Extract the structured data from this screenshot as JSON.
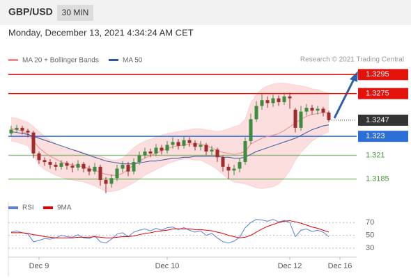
{
  "header": {
    "symbol": "GBP/USD",
    "timeframe": "30 MIN",
    "timestamp": "Monday, December 13, 2021 4:34:24 AM CET",
    "credit": "Research © 2021 Trading Central"
  },
  "chart_data": [
    {
      "type": "candlestick",
      "categories": [
        null,
        null,
        null,
        null,
        null,
        "Dec 9",
        null,
        null,
        null,
        null,
        null,
        null,
        null,
        null,
        null,
        null,
        null,
        null,
        null,
        null,
        null,
        null,
        null,
        null,
        null,
        null,
        null,
        null,
        "Dec 10",
        null,
        null,
        null,
        null,
        null,
        null,
        null,
        null,
        null,
        null,
        null,
        null,
        null,
        null,
        null,
        null,
        null,
        null,
        null,
        null,
        null,
        "Dec 12",
        null,
        null,
        null,
        null,
        null,
        null,
        null,
        null,
        "Dec 16"
      ],
      "open": [
        1.3233,
        1.3237,
        1.3239,
        1.3236,
        1.3234,
        1.3212,
        1.3205,
        1.3203,
        1.32,
        1.3198,
        1.3202,
        1.3199,
        1.3197,
        1.3201,
        1.3196,
        1.3193,
        1.3198,
        1.3184,
        1.318,
        1.3186,
        1.3196,
        1.32,
        1.3193,
        1.3203,
        1.321,
        1.3214,
        1.3212,
        1.3218,
        1.3215,
        1.3221,
        1.3224,
        1.322,
        1.3226,
        1.3223,
        1.3219,
        1.3221,
        1.3214,
        1.3216,
        1.3208,
        1.3198,
        1.3194,
        1.3196,
        1.3203,
        1.3225,
        1.3248,
        1.3262,
        1.3268,
        1.3265,
        1.327,
        1.3266,
        1.3272,
        1.3258,
        1.3239,
        1.3256,
        1.326,
        1.3257,
        1.3259,
        1.3255,
        null,
        null
      ],
      "high": [
        1.3241,
        1.3242,
        1.3241,
        1.3238,
        1.3236,
        1.3214,
        1.3208,
        1.3206,
        1.3203,
        1.3205,
        1.3204,
        1.3202,
        1.3205,
        1.3203,
        1.3199,
        1.3202,
        1.32,
        1.3187,
        1.319,
        1.32,
        1.3204,
        1.3203,
        1.3207,
        1.3214,
        1.3218,
        1.3217,
        1.3222,
        1.3221,
        1.3225,
        1.3229,
        1.3227,
        1.323,
        1.3229,
        1.3226,
        1.3225,
        1.3223,
        1.322,
        1.3218,
        1.321,
        1.3201,
        1.32,
        1.3207,
        1.3229,
        1.3254,
        1.3267,
        1.3275,
        1.3272,
        1.3274,
        1.3273,
        1.3276,
        1.3276,
        1.326,
        1.3262,
        1.3264,
        1.3263,
        1.3262,
        1.3261,
        1.3257,
        null,
        null
      ],
      "low": [
        1.323,
        1.3234,
        1.3232,
        1.3229,
        1.3207,
        1.3201,
        1.3199,
        1.3196,
        1.3194,
        1.3195,
        1.3195,
        1.3192,
        1.3194,
        1.3192,
        1.3189,
        1.319,
        1.3178,
        1.317,
        1.3176,
        1.3183,
        1.3192,
        1.3188,
        1.319,
        1.32,
        1.3207,
        1.3208,
        1.3209,
        1.3211,
        1.3212,
        1.3217,
        1.3216,
        1.3217,
        1.3219,
        1.3215,
        1.3215,
        1.321,
        1.321,
        1.3203,
        1.3193,
        1.3185,
        1.3189,
        1.3192,
        1.32,
        1.3222,
        1.3245,
        1.3258,
        1.326,
        1.3261,
        1.3262,
        1.3263,
        1.3259,
        1.3234,
        1.3236,
        1.3252,
        1.3253,
        1.3253,
        1.3251,
        1.3245,
        null,
        null
      ],
      "close": [
        1.3237,
        1.3239,
        1.3236,
        1.3234,
        1.3212,
        1.3205,
        1.3203,
        1.32,
        1.3198,
        1.3202,
        1.3199,
        1.3197,
        1.3201,
        1.3196,
        1.3193,
        1.3198,
        1.3184,
        1.318,
        1.3186,
        1.3196,
        1.32,
        1.3193,
        1.3203,
        1.321,
        1.3214,
        1.3212,
        1.3218,
        1.3215,
        1.3221,
        1.3224,
        1.322,
        1.3226,
        1.3223,
        1.3219,
        1.3221,
        1.3214,
        1.3216,
        1.3208,
        1.3198,
        1.3194,
        1.3196,
        1.3203,
        1.3225,
        1.3248,
        1.3262,
        1.3268,
        1.3265,
        1.327,
        1.3266,
        1.3272,
        1.327,
        1.3239,
        1.3256,
        1.326,
        1.3257,
        1.3259,
        1.3255,
        1.3247,
        null,
        null
      ],
      "up_color": "#3d8c40",
      "down_color": "#a02c2c",
      "series": [
        {
          "name": "MA 20 + Bollinger Bands",
          "color": "#f08a8a",
          "band_color": "#fbd3d3",
          "values": [
            1.3238,
            1.3237,
            1.3235,
            1.3233,
            1.3225,
            1.3218,
            1.3213,
            1.3209,
            1.3206,
            1.3203,
            1.3201,
            1.32,
            1.3199,
            1.3198,
            1.3196,
            1.3194,
            1.3192,
            1.319,
            1.3189,
            1.3189,
            1.3191,
            1.3195,
            1.32,
            1.3204,
            1.3207,
            1.321,
            1.3212,
            1.3215,
            1.3217,
            1.3219,
            1.322,
            1.3221,
            1.3222,
            1.3222,
            1.3222,
            1.322,
            1.3218,
            1.3215,
            1.3213,
            1.3212,
            1.3211,
            1.3212,
            1.3214,
            1.3222,
            1.3225,
            1.3228,
            1.323,
            1.3231,
            1.3233,
            1.3236,
            1.324,
            1.3244,
            1.3248,
            1.3251,
            1.3253,
            1.3254,
            1.3255,
            1.3255,
            null,
            null
          ],
          "upper": [
            1.325,
            1.3249,
            1.3247,
            1.3245,
            1.324,
            1.3235,
            1.323,
            1.3226,
            1.3222,
            1.3219,
            1.3217,
            1.3216,
            1.3215,
            1.3213,
            1.3211,
            1.321,
            1.3209,
            1.3207,
            1.3205,
            1.3205,
            1.3207,
            1.3212,
            1.3218,
            1.3222,
            1.3225,
            1.3227,
            1.3229,
            1.3231,
            1.3233,
            1.3234,
            1.3235,
            1.3236,
            1.3237,
            1.3238,
            1.3238,
            1.3237,
            1.3236,
            1.3235,
            1.3236,
            1.3238,
            1.324,
            1.3242,
            1.3248,
            1.3265,
            1.3274,
            1.328,
            1.3283,
            1.3285,
            1.3286,
            1.3286,
            1.3285,
            1.3284,
            1.3283,
            1.3282,
            1.328,
            1.3279,
            1.3277,
            1.3275,
            null,
            null
          ],
          "lower": [
            1.3225,
            1.3224,
            1.3222,
            1.322,
            1.321,
            1.32,
            1.3195,
            1.3192,
            1.3189,
            1.3187,
            1.3185,
            1.3184,
            1.3183,
            1.3182,
            1.318,
            1.3178,
            1.3175,
            1.3172,
            1.3172,
            1.3173,
            1.3175,
            1.3178,
            1.3181,
            1.3185,
            1.3189,
            1.3192,
            1.3195,
            1.3198,
            1.3201,
            1.3203,
            1.3205,
            1.3206,
            1.3206,
            1.3205,
            1.3205,
            1.3202,
            1.3199,
            1.3195,
            1.319,
            1.3185,
            1.3182,
            1.3181,
            1.318,
            1.3178,
            1.3176,
            1.3175,
            1.3176,
            1.3177,
            1.318,
            1.3186,
            1.3194,
            1.3205,
            1.3213,
            1.3219,
            1.3225,
            1.3229,
            1.3232,
            1.3235,
            null,
            null
          ]
        },
        {
          "name": "MA 50",
          "color": "#2d5a9e",
          "values": [
            1.3235,
            1.3234,
            1.3233,
            1.3232,
            1.323,
            1.3228,
            1.3226,
            1.3224,
            1.3222,
            1.322,
            1.3218,
            1.3216,
            1.3214,
            1.3212,
            1.321,
            1.3208,
            1.3206,
            1.3204,
            1.3203,
            1.3202,
            1.3201,
            1.3201,
            1.3201,
            1.3202,
            1.3203,
            1.3204,
            1.3204,
            1.3205,
            1.3206,
            1.3207,
            1.3207,
            1.3208,
            1.3208,
            1.3209,
            1.3209,
            1.3209,
            1.3209,
            1.3209,
            1.3208,
            1.3208,
            1.3207,
            1.3207,
            1.3208,
            1.3211,
            1.3214,
            1.3216,
            1.3218,
            1.322,
            1.3222,
            1.3224,
            1.3226,
            1.3228,
            1.3231,
            1.3234,
            1.3237,
            1.3239,
            1.3241,
            1.3242,
            null,
            null
          ]
        }
      ],
      "levels": [
        {
          "value": 1.3295,
          "color": "#e3120b",
          "line": "solid",
          "box": true
        },
        {
          "value": 1.3275,
          "color": "#e3120b",
          "line": "solid",
          "box": true
        },
        {
          "value": 1.3247,
          "color": "#333333",
          "line": "dotted",
          "box": true
        },
        {
          "value": 1.323,
          "color": "#2c6fd6",
          "line": "solid",
          "box": true
        },
        {
          "value": 1.321,
          "color": "#4a9a3a",
          "line": "solid",
          "box": false
        },
        {
          "value": 1.3185,
          "color": "#4a9a3a",
          "line": "solid",
          "box": false
        }
      ],
      "ylim": [
        1.3165,
        1.3304
      ]
    },
    {
      "type": "line",
      "series": [
        {
          "name": "RSI",
          "color": "#5b7fd6",
          "values": [
            55,
            57,
            54,
            52,
            40,
            42,
            45,
            44,
            46,
            50,
            48,
            47,
            51,
            46,
            45,
            49,
            40,
            38,
            44,
            52,
            54,
            48,
            55,
            58,
            60,
            57,
            61,
            58,
            62,
            63,
            59,
            62,
            58,
            55,
            57,
            50,
            53,
            46,
            40,
            38,
            41,
            47,
            62,
            70,
            75,
            74,
            72,
            75,
            71,
            73,
            70,
            48,
            58,
            60,
            56,
            58,
            55,
            48,
            null,
            null
          ]
        },
        {
          "name": "9MA",
          "color": "#e00000",
          "values": [
            54,
            54,
            54,
            53,
            51,
            50,
            48,
            47,
            46,
            46,
            46,
            46,
            47,
            47,
            47,
            48,
            47,
            46,
            46,
            47,
            48,
            48,
            49,
            51,
            53,
            54,
            56,
            57,
            58,
            60,
            60,
            60,
            60,
            59,
            59,
            58,
            57,
            55,
            53,
            50,
            48,
            46,
            47,
            50,
            55,
            60,
            64,
            67,
            70,
            72,
            73,
            71,
            69,
            66,
            63,
            61,
            58,
            55,
            null,
            null
          ]
        }
      ],
      "ylim": [
        17,
        80
      ],
      "yticks": [
        30,
        50,
        70
      ],
      "grid": true
    }
  ]
}
